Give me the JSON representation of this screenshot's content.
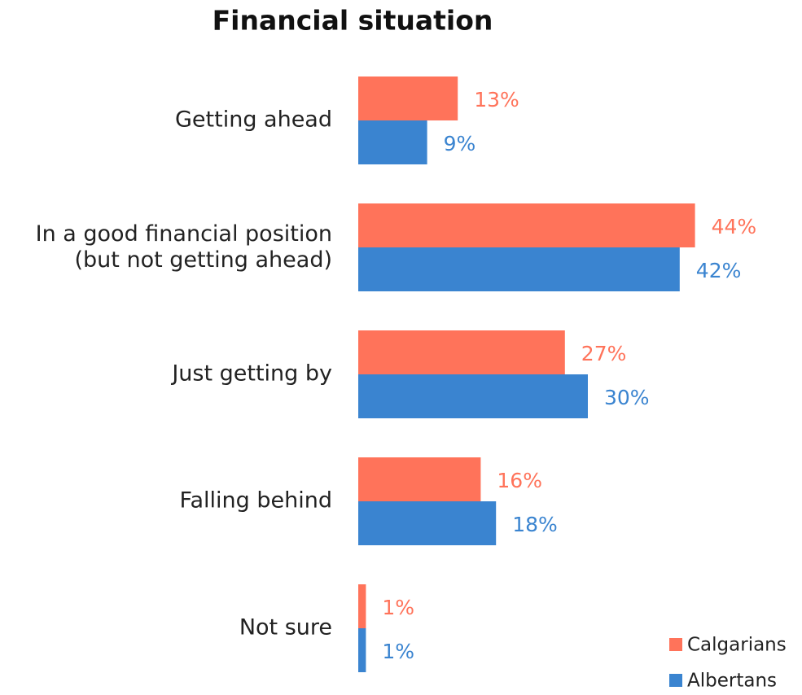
{
  "chart_data": {
    "type": "bar",
    "orientation": "horizontal",
    "title": "Financial situation",
    "categories": [
      "Getting ahead",
      "In a good financial position\n(but not getting ahead)",
      "Just getting by",
      "Falling behind",
      "Not sure"
    ],
    "series": [
      {
        "name": "Calgarians",
        "color": "#ff735a",
        "values": [
          13,
          44,
          27,
          16,
          1
        ],
        "value_labels": [
          "13%",
          "44%",
          "27%",
          "16%",
          "1%"
        ]
      },
      {
        "name": "Albertans",
        "color": "#3a84d0",
        "values": [
          9,
          42,
          30,
          18,
          1
        ],
        "value_labels": [
          "9%",
          "42%",
          "30%",
          "18%",
          "1%"
        ]
      }
    ],
    "xlim": [
      0,
      50
    ],
    "legend": "lower right"
  }
}
